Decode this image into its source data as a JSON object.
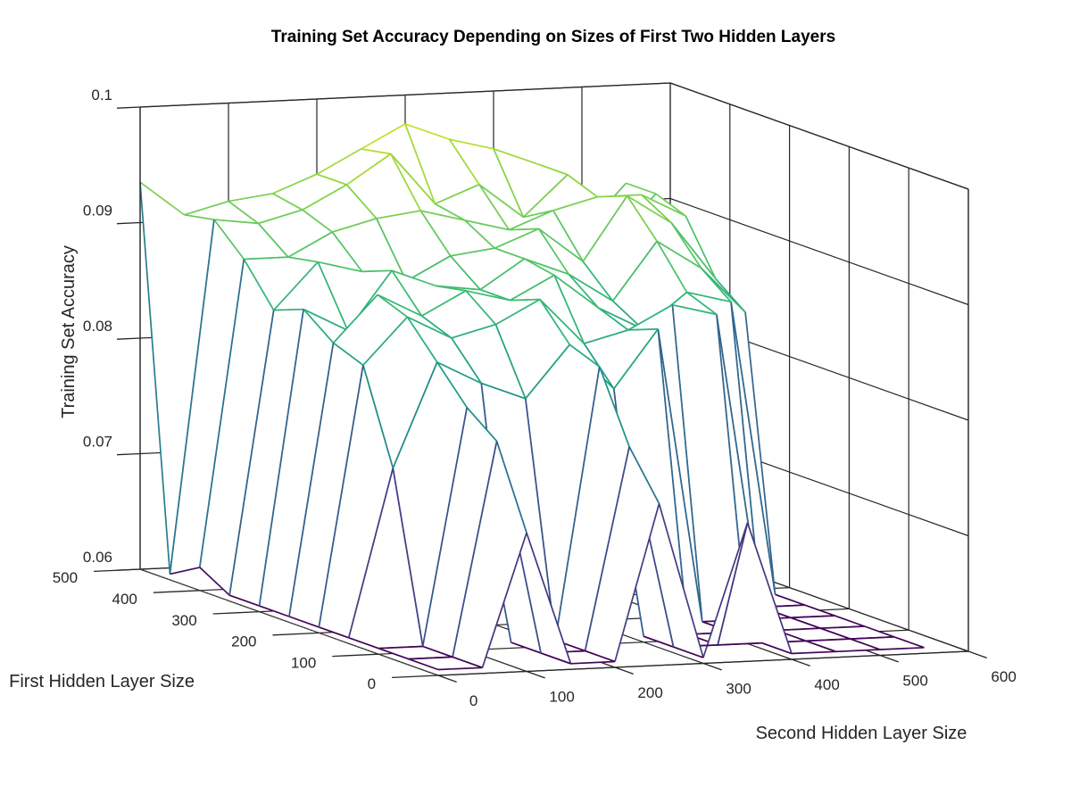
{
  "chart_data": {
    "type": "surface",
    "title": "Training Set Accuracy Depending on Sizes of First Two Hidden Layers",
    "xlabel": "Second Hidden Layer Size",
    "ylabel": "First Hidden Layer Size",
    "zlabel": "Training Set Accuracy",
    "xlim": [
      0,
      600
    ],
    "ylim": [
      0,
      500
    ],
    "zlim": [
      0.06,
      0.1
    ],
    "xticks": [
      "0",
      "100",
      "200",
      "300",
      "400",
      "500",
      "600"
    ],
    "yticks": [
      "0",
      "100",
      "200",
      "300",
      "400",
      "500"
    ],
    "zticks": [
      "0.06",
      "0.07",
      "0.08",
      "0.09",
      "0.1"
    ],
    "grid": true,
    "colormap": "viridis",
    "second_layer_sizes": [
      0,
      50,
      100,
      150,
      200,
      250,
      300,
      350,
      400,
      450,
      500,
      550
    ],
    "first_layer_sizes": [
      0,
      50,
      100,
      150,
      200,
      250,
      300,
      350,
      400,
      450,
      500
    ],
    "z_accuracy": [
      [
        0.0605,
        0.0605,
        0.072,
        0.0605,
        0.0605,
        0.074,
        0.0605,
        0.072,
        0.0605,
        0.0605,
        0.0605,
        0.0605
      ],
      [
        0.0605,
        0.0605,
        0.079,
        0.0605,
        0.0605,
        0.078,
        0.0605,
        0.0605,
        0.0605,
        0.0605,
        0.0605,
        0.0605
      ],
      [
        0.0605,
        0.0605,
        0.081,
        0.0605,
        0.0605,
        0.084,
        0.0605,
        0.0605,
        0.0605,
        0.0605,
        0.0605,
        0.0605
      ],
      [
        0.0605,
        0.075,
        0.084,
        0.082,
        0.0805,
        0.085,
        0.081,
        0.086,
        0.0605,
        0.0605,
        0.0605,
        0.0605
      ],
      [
        0.0605,
        0.083,
        0.087,
        0.085,
        0.086,
        0.088,
        0.084,
        0.085,
        0.087,
        0.086,
        0.0605,
        0.0605
      ],
      [
        0.0605,
        0.084,
        0.088,
        0.086,
        0.088,
        0.087,
        0.089,
        0.086,
        0.084,
        0.087,
        0.086,
        0.0605
      ],
      [
        0.0605,
        0.086,
        0.084,
        0.089,
        0.0875,
        0.087,
        0.0895,
        0.088,
        0.0855,
        0.0905,
        0.088,
        0.084
      ],
      [
        0.0605,
        0.085,
        0.089,
        0.088,
        0.087,
        0.089,
        0.0895,
        0.091,
        0.088,
        0.0935,
        0.091,
        0.086
      ],
      [
        0.062,
        0.0885,
        0.0885,
        0.0905,
        0.0915,
        0.092,
        0.091,
        0.09,
        0.0915,
        0.0925,
        0.0925,
        0.0905
      ],
      [
        0.0605,
        0.091,
        0.0905,
        0.0915,
        0.0935,
        0.096,
        0.0915,
        0.093,
        0.09,
        0.0935,
        0.0875,
        0.0915
      ],
      [
        0.0935,
        0.0905,
        0.0915,
        0.092,
        0.0935,
        0.0955,
        0.0975,
        0.096,
        0.095,
        0.0935,
        0.0875,
        0.0915
      ]
    ]
  }
}
